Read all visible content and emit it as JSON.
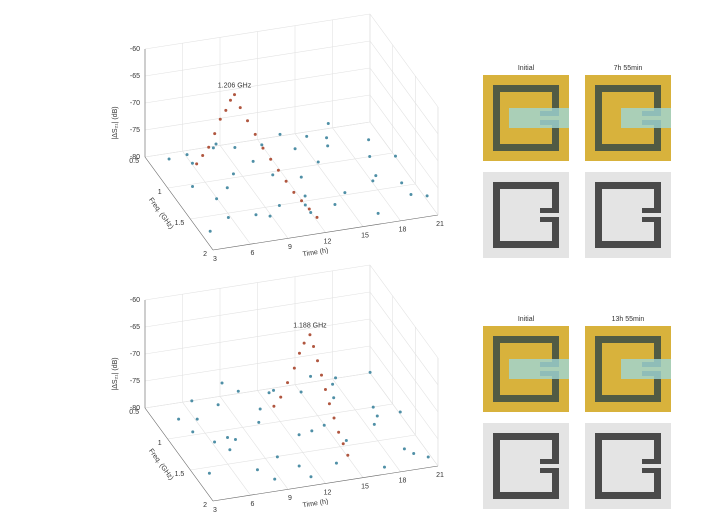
{
  "chart_data": [
    {
      "type": "scatter3d",
      "annotation": "1.206 GHz",
      "xlabel": "Time (h)",
      "ylabel": "Freq. (GHz)",
      "zlabel": "|ΔS₂₁| (dB)",
      "xlim": [
        3,
        21
      ],
      "xticks": [
        3,
        6,
        9,
        12,
        15,
        18,
        21
      ],
      "ylim": [
        0.5,
        2
      ],
      "yticks": [
        0.5,
        1,
        1.5,
        2
      ],
      "zlim": [
        -80,
        -60
      ],
      "zticks": [
        -80,
        -75,
        -70,
        -65,
        -60
      ],
      "grid": true,
      "photo_labels": [
        "Initial",
        "7h 55min"
      ],
      "series": [
        {
          "color": "#4f8fa6",
          "x": [
            3.5,
            4.2,
            5.1,
            6.0,
            6.8,
            7.9,
            8.5,
            9.4,
            10.2,
            11.0,
            11.8,
            12.6,
            13.3,
            14.1,
            15.0,
            15.8,
            16.5,
            17.3,
            18.2,
            19.0,
            19.8,
            20.5,
            4.8,
            6.5,
            8.0,
            9.9,
            12.0,
            14.5,
            16.8,
            19.2,
            5.5,
            10.5,
            13.8,
            17.6,
            20.2,
            7.2,
            11.4,
            15.5,
            18.8,
            3.9
          ],
          "y": [
            1.8,
            0.7,
            1.5,
            0.6,
            1.9,
            1.1,
            0.55,
            1.7,
            0.9,
            1.95,
            0.65,
            1.3,
            1.85,
            0.75,
            1.6,
            1.0,
            1.92,
            0.6,
            1.4,
            1.75,
            0.8,
            1.2,
            1.05,
            1.35,
            1.88,
            0.58,
            1.55,
            1.15,
            0.7,
            1.9,
            1.65,
            1.25,
            0.5,
            1.5,
            1.98,
            0.85,
            1.72,
            0.62,
            1.1,
            1.3
          ],
          "values": [
            -79,
            -78.5,
            -77,
            -79.5,
            -76,
            -78,
            -79,
            -77.5,
            -78.8,
            -76.5,
            -79.2,
            -78,
            -77,
            -79.6,
            -78.3,
            -76.8,
            -79,
            -77.8,
            -78.6,
            -76.2,
            -79.4,
            -78.1,
            -75.5,
            -77.2,
            -76.9,
            -79.8,
            -78.4,
            -77.6,
            -79.1,
            -76.7,
            -78.9,
            -77.4,
            -79.7,
            -78.2,
            -76.4,
            -75.8,
            -77.9,
            -79.3,
            -78.7,
            -76.6
          ]
        },
        {
          "color": "#b0563f",
          "x": [
            5.5,
            5.8,
            6.1,
            6.4,
            6.7,
            7.0,
            7.3,
            7.6,
            7.9,
            8.3,
            8.7,
            9.1,
            9.5,
            9.9,
            10.3,
            10.7,
            11.1,
            11.5,
            11.9
          ],
          "y": [
            0.95,
            1.0,
            1.05,
            1.1,
            1.14,
            1.18,
            1.2,
            1.206,
            1.25,
            1.3,
            1.36,
            1.42,
            1.48,
            1.54,
            1.6,
            1.66,
            1.72,
            1.78,
            1.84
          ],
          "values": [
            -77,
            -75,
            -73,
            -70,
            -67,
            -65,
            -63,
            -62,
            -64,
            -66,
            -68,
            -70,
            -71.5,
            -73,
            -74.5,
            -76,
            -77,
            -78,
            -79
          ]
        }
      ]
    },
    {
      "type": "scatter3d",
      "annotation": "1.188 GHz",
      "xlabel": "Time (h)",
      "ylabel": "Freq. (GHz)",
      "zlabel": "|ΔS₂₁| (dB)",
      "xlim": [
        3,
        21
      ],
      "xticks": [
        3,
        6,
        9,
        12,
        15,
        18,
        21
      ],
      "ylim": [
        0.5,
        2
      ],
      "yticks": [
        0.5,
        1,
        1.5,
        2
      ],
      "zlim": [
        -80,
        -60
      ],
      "zticks": [
        -80,
        -75,
        -70,
        -65,
        -60
      ],
      "grid": true,
      "photo_labels": [
        "Initial",
        "13h 55min"
      ],
      "series": [
        {
          "color": "#4f8fa6",
          "x": [
            3.8,
            4.6,
            5.3,
            6.2,
            7.1,
            7.7,
            8.8,
            9.6,
            10.4,
            11.2,
            12.2,
            12.9,
            13.6,
            14.4,
            15.3,
            16.1,
            16.9,
            17.7,
            18.5,
            19.4,
            20.1,
            20.7,
            5.0,
            6.7,
            8.3,
            10.1,
            11.7,
            14.8,
            17.1,
            19.6,
            5.8,
            9.2,
            13.1,
            17.9,
            20.4,
            7.4,
            10.8,
            15.7,
            18.9,
            4.1
          ],
          "y": [
            1.7,
            0.8,
            1.4,
            0.65,
            1.85,
            1.2,
            0.6,
            1.6,
            1.0,
            1.9,
            0.7,
            1.45,
            1.8,
            0.8,
            1.55,
            1.05,
            1.95,
            0.65,
            1.35,
            1.7,
            0.75,
            1.25,
            1.1,
            1.3,
            1.9,
            0.6,
            1.5,
            1.2,
            0.75,
            1.85,
            1.6,
            1.3,
            0.55,
            1.45,
            1.95,
            0.9,
            1.75,
            0.65,
            1.15,
            1.25
          ],
          "values": [
            -78.6,
            -79.2,
            -76.8,
            -78.1,
            -77.4,
            -79.5,
            -76.3,
            -78.8,
            -77.1,
            -79.6,
            -78.2,
            -76.9,
            -79.1,
            -77.7,
            -78.4,
            -76.5,
            -79.3,
            -78,
            -77.3,
            -79.7,
            -76.7,
            -78.5,
            -75.9,
            -77.6,
            -79,
            -78.3,
            -76.6,
            -79.4,
            -77.8,
            -78.9,
            -76.1,
            -75.7,
            -79.8,
            -77.5,
            -78.7,
            -76.4,
            -79.2,
            -77,
            -78.1,
            -76.2
          ]
        },
        {
          "color": "#b0563f",
          "x": [
            11.5,
            11.9,
            12.3,
            12.7,
            13.0,
            13.3,
            13.7,
            13.8,
            13.9,
            14.0,
            14.1,
            14.2,
            14.35,
            14.5,
            14.65,
            14.8
          ],
          "y": [
            1.0,
            1.04,
            1.08,
            1.12,
            1.15,
            1.17,
            1.188,
            1.24,
            1.3,
            1.36,
            1.42,
            1.48,
            1.54,
            1.6,
            1.66,
            1.72
          ],
          "values": [
            -77,
            -75,
            -72,
            -69,
            -66,
            -64,
            -62.4,
            -64,
            -66,
            -68,
            -70,
            -72,
            -74,
            -76,
            -77.5,
            -79
          ]
        }
      ]
    }
  ]
}
